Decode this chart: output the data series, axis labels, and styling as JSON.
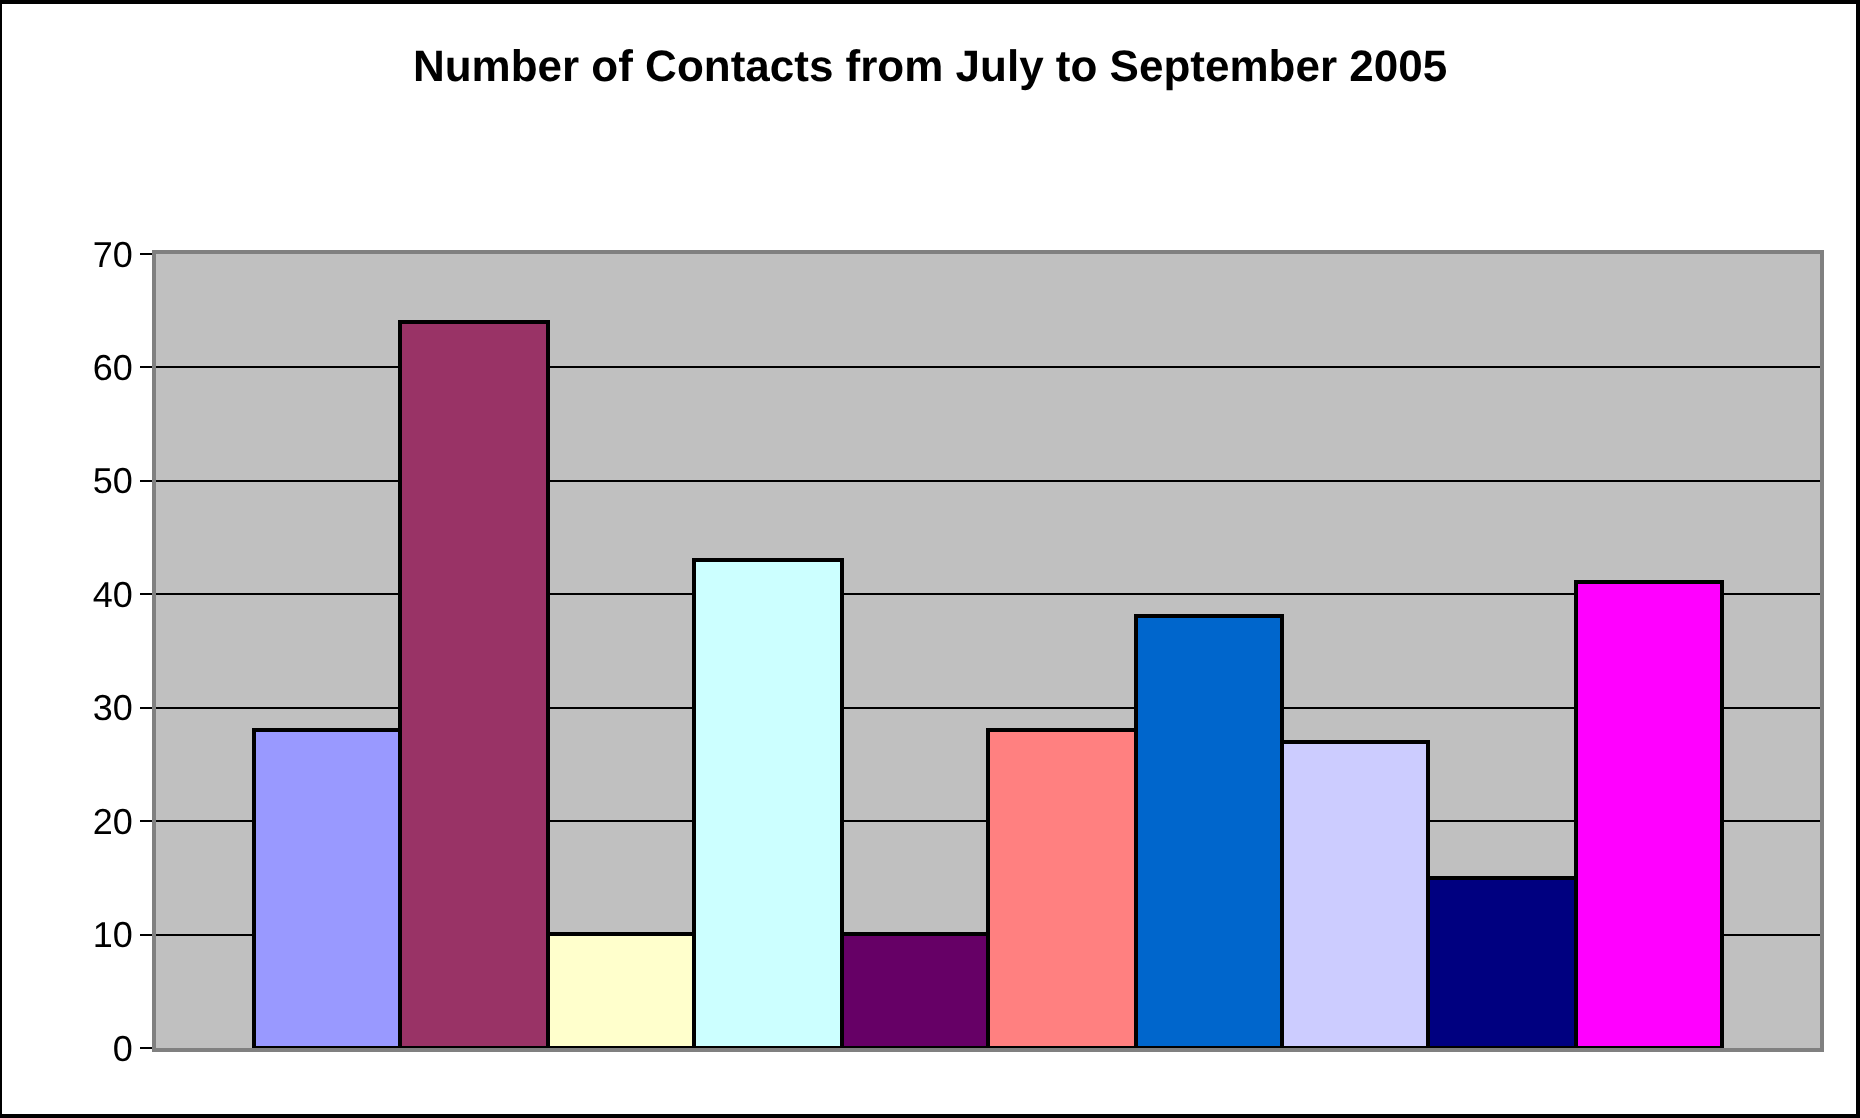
{
  "chart_data": {
    "type": "bar",
    "title": "Number of Contacts from July to September 2005",
    "categories": [
      null,
      null,
      null,
      null,
      null,
      null,
      null,
      null,
      null,
      null
    ],
    "values": [
      28,
      64,
      10,
      43,
      10,
      28,
      38,
      27,
      15,
      41
    ],
    "colors": [
      "#9999ff",
      "#993366",
      "#ffffcc",
      "#ccffff",
      "#660066",
      "#ff8080",
      "#0066cc",
      "#ccccff",
      "#000080",
      "#ff00ff"
    ],
    "ylim": [
      0,
      70
    ],
    "yticks": [
      0,
      10,
      20,
      30,
      40,
      50,
      60,
      70
    ],
    "grid": "y"
  }
}
